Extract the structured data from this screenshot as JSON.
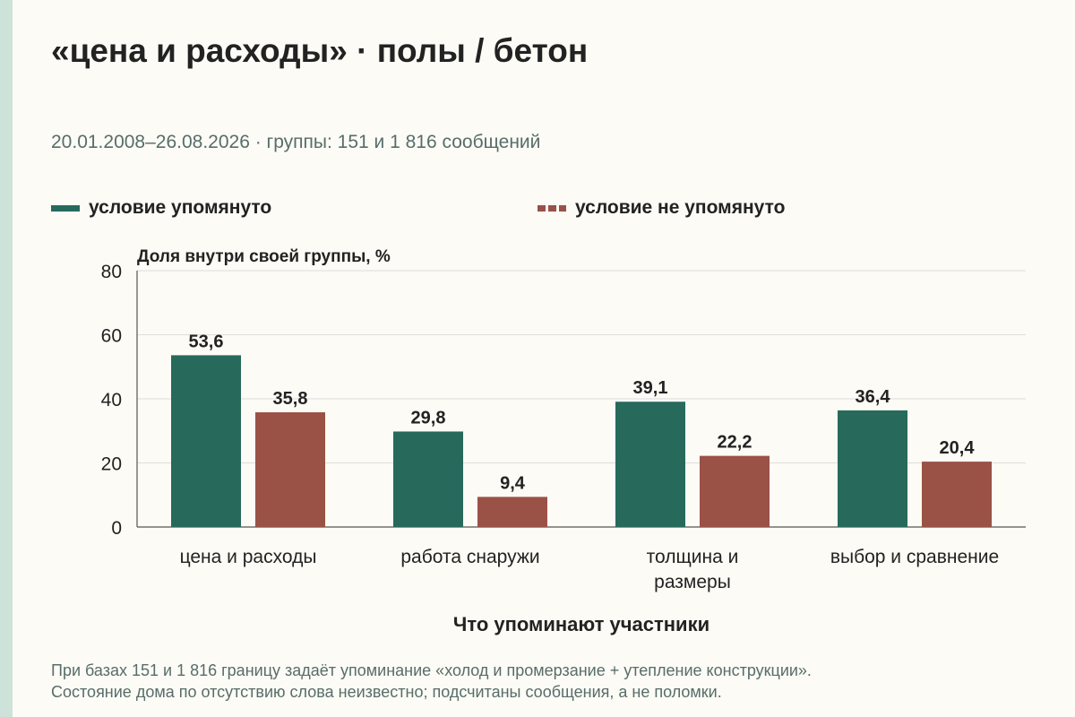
{
  "title": "«цена и расходы» · полы / бетон",
  "subtitle": "20.01.2008–26.08.2026 · группы: 151 и 1 816 сообщений",
  "legend": {
    "items": [
      {
        "label": "условие упомянуто",
        "style": "solid"
      },
      {
        "label": "условие не упомянуто",
        "style": "dashed"
      }
    ]
  },
  "colors": {
    "mentioned": "#276a5c",
    "not_mentioned": "#9a5246",
    "grid": "#dddddd",
    "stripe": "#cde3d9"
  },
  "footnote": {
    "line1": "При базах 151 и 1 816 границу задаёт упоминание «холод и промерзание + утепление конструкции».",
    "line2": "Состояние дома по отсутствию слова неизвестно; подсчитаны сообщения, а не поломки."
  },
  "chart_data": {
    "type": "bar",
    "ylabel": "Доля внутри своей группы, %",
    "xlabel": "Что упоминают участники",
    "ylim": [
      0,
      80
    ],
    "yticks": [
      0,
      20,
      40,
      60,
      80
    ],
    "grid": true,
    "legend_position": "top",
    "categories": [
      [
        "цена и расходы"
      ],
      [
        "работа снаружи"
      ],
      [
        "толщина и",
        "размеры"
      ],
      [
        "выбор и сравнение"
      ]
    ],
    "series": [
      {
        "name": "условие упомянуто",
        "values": [
          53.6,
          29.8,
          39.1,
          36.4
        ],
        "labels": [
          "53,6",
          "29,8",
          "39,1",
          "36,4"
        ]
      },
      {
        "name": "условие не упомянуто",
        "values": [
          35.8,
          9.4,
          22.2,
          20.4
        ],
        "labels": [
          "35,8",
          "9,4",
          "22,2",
          "20,4"
        ]
      }
    ]
  }
}
